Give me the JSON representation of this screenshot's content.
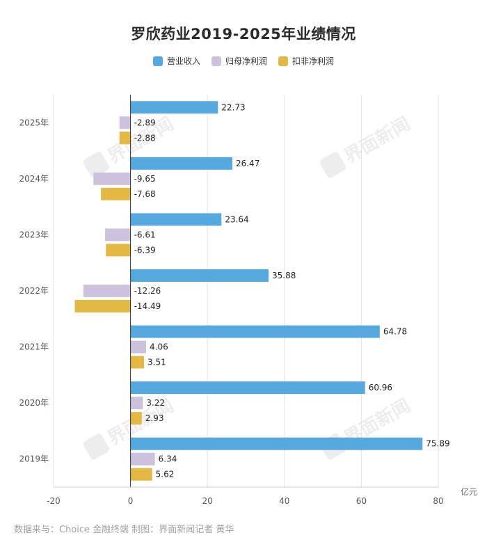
{
  "chart_data": {
    "type": "bar",
    "orientation": "horizontal",
    "title": "罗欣药业2019-2025年业绩情况",
    "categories": [
      "2025年",
      "2024年",
      "2023年",
      "2022年",
      "2021年",
      "2020年",
      "2019年"
    ],
    "series": [
      {
        "name": "营业收入",
        "color": "#55a9df",
        "values": [
          22.73,
          26.47,
          23.64,
          35.88,
          64.78,
          60.96,
          75.89
        ]
      },
      {
        "name": "归母净利润",
        "color": "#cdc2dd",
        "values": [
          -2.89,
          -9.65,
          -6.61,
          -12.26,
          4.06,
          3.22,
          6.34
        ]
      },
      {
        "name": "扣非净利润",
        "color": "#e3b944",
        "values": [
          -2.88,
          -7.68,
          -6.39,
          -14.49,
          3.51,
          2.93,
          5.62
        ]
      }
    ],
    "xlim": [
      -20,
      80
    ],
    "xticks": [
      -20,
      0,
      20,
      40,
      60,
      80
    ],
    "unit_label": "亿元",
    "grid": true,
    "legend_position": "top-center"
  },
  "watermark": "界面新闻",
  "footer": "数据来与：Choice 金融终端 制图：界面新闻记者 黄华"
}
